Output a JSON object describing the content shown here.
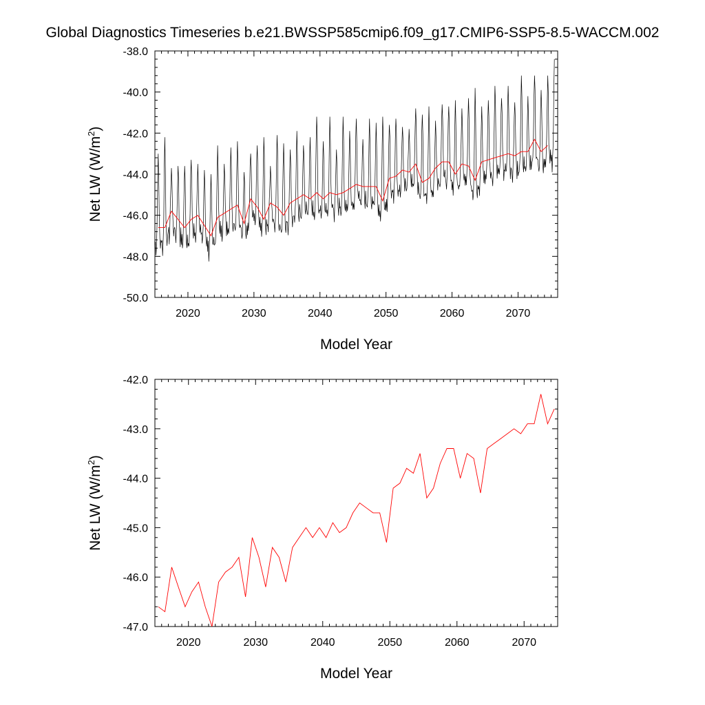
{
  "title": "Global Diagnostics Timeseries b.e21.BWSSP585cmip6.f09_g17.CMIP6-SSP5-8.5-WACCM.002",
  "colors": {
    "monthly": "#000000",
    "annual": "#ff0000",
    "axis": "#000000"
  },
  "chart_data": [
    {
      "type": "line",
      "xlabel": "Model Year",
      "ylabel": "Net LW (W/m²)",
      "ylabel_main": "Net LW (W/m",
      "ylabel_sup": "2",
      "ylabel_close": ")",
      "xlim": [
        2015,
        2076
      ],
      "ylim": [
        -50.0,
        -38.0
      ],
      "xticks": [
        2020,
        2030,
        2040,
        2050,
        2060,
        2070
      ],
      "xtick_labels": [
        "2020",
        "2030",
        "2040",
        "2050",
        "2060",
        "2070"
      ],
      "yticks": [
        -50,
        -48,
        -46,
        -44,
        -42,
        -40,
        -38
      ],
      "ytick_labels": [
        "-50.0",
        "-48.0",
        "-46.0",
        "-44.0",
        "-42.0",
        "-40.0",
        "-38.0"
      ],
      "grid": false,
      "series": [
        {
          "style": "monthly",
          "color": "#000000",
          "monthly_model": {
            "start_year": 2015,
            "end_year": 2075.5,
            "summer_peak_offset": 3.4,
            "winter_trough_offset": -1.2,
            "secondary_trough_offset": -1.0,
            "peak_values": [
              -43.0,
              -42.2,
              -43.7,
              -43.6,
              -43.6,
              -43.3,
              -43.5,
              -43.8,
              -44.0,
              -42.6,
              -43.5,
              -42.7,
              -42.4,
              -43.9,
              -43.0,
              -42.6,
              -42.2,
              -43.6,
              -42.1,
              -42.5,
              -42.8,
              -41.9,
              -42.6,
              -42.2,
              -41.2,
              -42.4,
              -41.2,
              -42.8,
              -41.2,
              -41.9,
              -41.3,
              -42.3,
              -41.3,
              -41.5,
              -41.2,
              -41.6,
              -41.3,
              -41.7,
              -41.8,
              -40.8,
              -41.1,
              -40.7,
              -41.4,
              -40.6,
              -40.7,
              -40.4,
              -40.8,
              -40.3,
              -39.8,
              -40.7,
              -40.4,
              -39.7,
              -40.3,
              -39.7,
              -40.5,
              -39.2,
              -40.2,
              -39.2,
              -39.9,
              -39.2,
              -38.4
            ]
          }
        },
        {
          "style": "annual",
          "color": "#ff0000",
          "x": [
            2015.5,
            2016.5,
            2017.5,
            2018.5,
            2019.5,
            2020.5,
            2021.5,
            2022.5,
            2023.5,
            2024.5,
            2025.5,
            2026.5,
            2027.5,
            2028.5,
            2029.5,
            2030.5,
            2031.5,
            2032.5,
            2033.5,
            2034.5,
            2035.5,
            2036.5,
            2037.5,
            2038.5,
            2039.5,
            2040.5,
            2041.5,
            2042.5,
            2043.5,
            2044.5,
            2045.5,
            2046.5,
            2047.5,
            2048.5,
            2049.5,
            2050.5,
            2051.5,
            2052.5,
            2053.5,
            2054.5,
            2055.5,
            2056.5,
            2057.5,
            2058.5,
            2059.5,
            2060.5,
            2061.5,
            2062.5,
            2063.5,
            2064.5,
            2065.5,
            2066.5,
            2067.5,
            2068.5,
            2069.5,
            2070.5,
            2071.5,
            2072.5,
            2073.5,
            2074.5
          ],
          "values": [
            -46.6,
            -46.6,
            -45.8,
            -46.2,
            -46.6,
            -46.2,
            -46.0,
            -46.5,
            -47.0,
            -46.1,
            -45.9,
            -45.7,
            -45.5,
            -46.4,
            -45.2,
            -45.6,
            -46.2,
            -45.4,
            -45.6,
            -46.0,
            -45.4,
            -45.2,
            -45.0,
            -45.2,
            -44.9,
            -45.2,
            -44.9,
            -45.0,
            -44.9,
            -44.7,
            -44.5,
            -44.6,
            -44.6,
            -44.6,
            -45.3,
            -44.2,
            -44.1,
            -43.8,
            -43.9,
            -43.5,
            -44.4,
            -44.2,
            -43.7,
            -43.4,
            -43.4,
            -44.0,
            -43.5,
            -43.6,
            -44.3,
            -43.4,
            -43.3,
            -43.2,
            -43.1,
            -43.0,
            -43.1,
            -42.9,
            -42.9,
            -42.3,
            -42.9,
            -42.6
          ]
        }
      ]
    },
    {
      "type": "line",
      "xlabel": "Model Year",
      "ylabel": "Net LW (W/m²)",
      "ylabel_main": "Net LW (W/m",
      "ylabel_sup": "2",
      "ylabel_close": ")",
      "xlim": [
        2015,
        2075
      ],
      "ylim": [
        -47.0,
        -42.0
      ],
      "xticks": [
        2020,
        2030,
        2040,
        2050,
        2060,
        2070
      ],
      "xtick_labels": [
        "2020",
        "2030",
        "2040",
        "2050",
        "2060",
        "2070"
      ],
      "yticks": [
        -47,
        -46,
        -45,
        -44,
        -43,
        -42
      ],
      "ytick_labels": [
        "-47.0",
        "-46.0",
        "-45.0",
        "-44.0",
        "-43.0",
        "-42.0"
      ],
      "grid": false,
      "series": [
        {
          "style": "annual",
          "color": "#ff0000",
          "x": [
            2015.5,
            2016.5,
            2017.5,
            2018.5,
            2019.5,
            2020.5,
            2021.5,
            2022.5,
            2023.5,
            2024.5,
            2025.5,
            2026.5,
            2027.5,
            2028.5,
            2029.5,
            2030.5,
            2031.5,
            2032.5,
            2033.5,
            2034.5,
            2035.5,
            2036.5,
            2037.5,
            2038.5,
            2039.5,
            2040.5,
            2041.5,
            2042.5,
            2043.5,
            2044.5,
            2045.5,
            2046.5,
            2047.5,
            2048.5,
            2049.5,
            2050.5,
            2051.5,
            2052.5,
            2053.5,
            2054.5,
            2055.5,
            2056.5,
            2057.5,
            2058.5,
            2059.5,
            2060.5,
            2061.5,
            2062.5,
            2063.5,
            2064.5,
            2065.5,
            2066.5,
            2067.5,
            2068.5,
            2069.5,
            2070.5,
            2071.5,
            2072.5,
            2073.5,
            2074.5
          ],
          "values": [
            -46.6,
            -46.7,
            -45.8,
            -46.2,
            -46.6,
            -46.3,
            -46.1,
            -46.6,
            -47.0,
            -46.1,
            -45.9,
            -45.8,
            -45.6,
            -46.4,
            -45.2,
            -45.6,
            -46.2,
            -45.4,
            -45.6,
            -46.1,
            -45.4,
            -45.2,
            -45.0,
            -45.2,
            -45.0,
            -45.2,
            -44.9,
            -45.1,
            -45.0,
            -44.7,
            -44.5,
            -44.6,
            -44.7,
            -44.7,
            -45.3,
            -44.2,
            -44.1,
            -43.8,
            -43.9,
            -43.5,
            -44.4,
            -44.2,
            -43.7,
            -43.4,
            -43.4,
            -44.0,
            -43.5,
            -43.6,
            -44.3,
            -43.4,
            -43.3,
            -43.2,
            -43.1,
            -43.0,
            -43.1,
            -42.9,
            -42.9,
            -42.3,
            -42.9,
            -42.6
          ]
        }
      ]
    }
  ]
}
